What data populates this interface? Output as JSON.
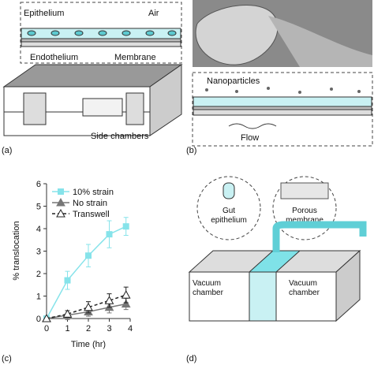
{
  "panel_a": {
    "label": "(a)",
    "epithelium": "Epithelium",
    "air": "Air",
    "endothelium": "Endothelium",
    "membrane": "Membrane",
    "side_chambers": "Side chambers"
  },
  "panel_b": {
    "label": "(b)",
    "nanoparticles": "Nanoparticles",
    "flow": "Flow"
  },
  "panel_c": {
    "label": "(c)"
  },
  "panel_d": {
    "label": "(d)",
    "gut_epithelium": [
      "Gut",
      "epithelium"
    ],
    "porous_membrane": [
      "Porous",
      "membrane"
    ],
    "left_chamber": [
      "Vacuum",
      "chamber"
    ],
    "right_chamber": [
      "Vacuum",
      "chamber"
    ]
  },
  "chart_data": {
    "type": "line",
    "x_label": "Time (hr)",
    "y_label": "% translocation",
    "xlim": [
      0,
      4
    ],
    "ylim": [
      0,
      6
    ],
    "xticks": [
      0,
      1,
      2,
      3,
      4
    ],
    "yticks": [
      0,
      1,
      2,
      3,
      4,
      5,
      6
    ],
    "series": [
      {
        "name": "10% strain",
        "color": "#86e3ea",
        "marker": "square",
        "dashed": false,
        "x": [
          0,
          1,
          2,
          3,
          3.8
        ],
        "values": [
          0,
          1.7,
          2.8,
          3.75,
          4.1
        ],
        "errors": [
          0,
          0.4,
          0.5,
          0.6,
          0.4
        ]
      },
      {
        "name": "No strain",
        "color": "#777777",
        "marker": "triangle",
        "dashed": false,
        "x": [
          0,
          1,
          2,
          3,
          3.8
        ],
        "values": [
          0,
          0.15,
          0.3,
          0.5,
          0.65
        ],
        "errors": [
          0,
          0.2,
          0.2,
          0.25,
          0.25
        ]
      },
      {
        "name": "Transwell",
        "color": "#222222",
        "marker": "open-triangle",
        "dashed": true,
        "x": [
          0,
          1,
          2,
          3,
          3.8
        ],
        "values": [
          0,
          0.2,
          0.5,
          0.8,
          1.05
        ],
        "errors": [
          0,
          0.15,
          0.25,
          0.3,
          0.35
        ]
      }
    ]
  }
}
